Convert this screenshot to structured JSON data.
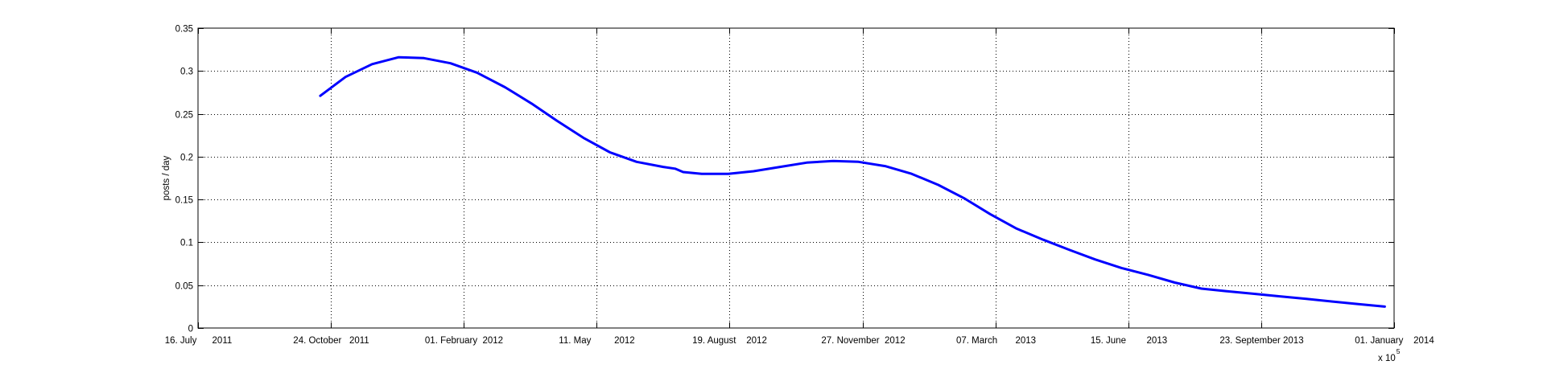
{
  "chart_data": {
    "type": "line",
    "title": "",
    "xlabel": "",
    "ylabel": "posts / day",
    "x_scale_note": "x 10",
    "x_scale_exponent": "5",
    "grid": true,
    "line_color": "#0000ff",
    "xlim": [
      "2011-07-16",
      "2014-01-01"
    ],
    "ylim": [
      0,
      0.35
    ],
    "x_ticks": [
      {
        "date": "2011-07-16",
        "label": "16. July      2011"
      },
      {
        "date": "2011-10-24",
        "label": "24. October   2011"
      },
      {
        "date": "2012-02-01",
        "label": "01. February  2012"
      },
      {
        "date": "2012-05-11",
        "label": "11. May         2012"
      },
      {
        "date": "2012-08-19",
        "label": "19. August    2012"
      },
      {
        "date": "2012-11-27",
        "label": "27. November  2012"
      },
      {
        "date": "2013-03-07",
        "label": "07. March       2013"
      },
      {
        "date": "2013-06-15",
        "label": "15. June        2013"
      },
      {
        "date": "2013-09-23",
        "label": "23. September 2013"
      },
      {
        "date": "2014-01-01",
        "label": "01. January    2014"
      }
    ],
    "y_ticks": [
      "0",
      "0.05",
      "0.1",
      "0.15",
      "0.2",
      "0.25",
      "0.3",
      "0.35"
    ],
    "series": [
      {
        "x": [
          "2011-10-16",
          "2011-11-04",
          "2011-11-24",
          "2011-12-14",
          "2012-01-02",
          "2012-01-22",
          "2012-02-11",
          "2012-03-03",
          "2012-03-23",
          "2012-04-11",
          "2012-05-01",
          "2012-05-21",
          "2012-06-10",
          "2012-06-30",
          "2012-07-09",
          "2012-07-15",
          "2012-07-29",
          "2012-08-18",
          "2012-09-06",
          "2012-09-26",
          "2012-10-16",
          "2012-11-05",
          "2012-11-24",
          "2012-12-14",
          "2013-01-03",
          "2013-01-23",
          "2013-02-12",
          "2013-03-03",
          "2013-03-23",
          "2013-04-12",
          "2013-05-02",
          "2013-05-21",
          "2013-06-10",
          "2013-06-30",
          "2013-07-20",
          "2013-08-09",
          "2013-08-28",
          "2013-09-17",
          "2013-10-07",
          "2013-10-27",
          "2013-11-15",
          "2013-12-05",
          "2013-12-25"
        ],
        "values": [
          0.271,
          0.293,
          0.308,
          0.316,
          0.315,
          0.309,
          0.298,
          0.281,
          0.262,
          0.242,
          0.222,
          0.205,
          0.194,
          0.188,
          0.186,
          0.182,
          0.18,
          0.18,
          0.183,
          0.188,
          0.193,
          0.195,
          0.194,
          0.189,
          0.18,
          0.167,
          0.151,
          0.133,
          0.116,
          0.103,
          0.091,
          0.08,
          0.07,
          0.062,
          0.053,
          0.046,
          0.043,
          0.04,
          0.037,
          0.034,
          0.031,
          0.028,
          0.025
        ]
      }
    ]
  }
}
